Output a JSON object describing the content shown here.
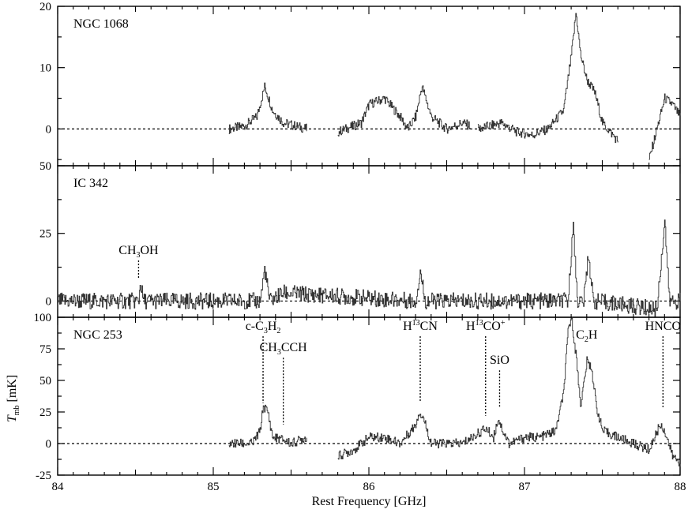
{
  "chart_data": {
    "type": "line",
    "xlabel": "Rest Frequency [GHz]",
    "ylabel": "T_mb [mK]",
    "ylabel_main": "T",
    "ylabel_sub": "mb",
    "ylabel_unit": " [mK]",
    "xlim": [
      84,
      88
    ],
    "x_ticks": [
      84,
      85,
      86,
      87,
      88
    ],
    "x_tick_labels": [
      "84",
      "85",
      "86",
      "87",
      "88"
    ],
    "panels": [
      {
        "name": "NGC 1068",
        "ylim": [
          -6,
          20
        ],
        "y_ticks": [
          0,
          10,
          20
        ],
        "y_tick_labels": [
          "0",
          "10",
          "20"
        ],
        "segments": [
          {
            "x_start": 85.1,
            "x_end": 85.6,
            "points": [
              [
                85.1,
                0
              ],
              [
                85.2,
                0.5
              ],
              [
                85.28,
                2
              ],
              [
                85.33,
                7
              ],
              [
                85.38,
                3
              ],
              [
                85.45,
                1
              ],
              [
                85.6,
                0
              ]
            ]
          },
          {
            "x_start": 85.8,
            "x_end": 86.65,
            "points": [
              [
                85.8,
                -0.5
              ],
              [
                85.95,
                1
              ],
              [
                86.0,
                4
              ],
              [
                86.1,
                5
              ],
              [
                86.2,
                2
              ],
              [
                86.25,
                0
              ],
              [
                86.3,
                2
              ],
              [
                86.34,
                7
              ],
              [
                86.4,
                2
              ],
              [
                86.5,
                0
              ],
              [
                86.6,
                1
              ],
              [
                86.65,
                0.5
              ]
            ]
          },
          {
            "x_start": 86.7,
            "x_end": 87.6,
            "points": [
              [
                86.7,
                0
              ],
              [
                86.85,
                1
              ],
              [
                86.95,
                -0.5
              ],
              [
                87.05,
                -1
              ],
              [
                87.15,
                0
              ],
              [
                87.25,
                3
              ],
              [
                87.3,
                12
              ],
              [
                87.33,
                19
              ],
              [
                87.36,
                12
              ],
              [
                87.4,
                8
              ],
              [
                87.45,
                6
              ],
              [
                87.5,
                1
              ],
              [
                87.6,
                -2
              ]
            ]
          },
          {
            "x_start": 87.8,
            "x_end": 88.0,
            "points": [
              [
                87.8,
                -5
              ],
              [
                87.85,
                0
              ],
              [
                87.9,
                5
              ],
              [
                87.95,
                4
              ],
              [
                88.0,
                2
              ]
            ]
          }
        ]
      },
      {
        "name": "IC 342",
        "ylim": [
          -6,
          50
        ],
        "y_ticks": [
          0,
          25,
          50
        ],
        "y_tick_labels": [
          "0",
          "25",
          "50"
        ],
        "segments": [
          {
            "x_start": 84.0,
            "x_end": 88.0,
            "points": [
              [
                84.0,
                0
              ],
              [
                84.52,
                0
              ],
              [
                84.53,
                7
              ],
              [
                84.55,
                0
              ],
              [
                85.3,
                0
              ],
              [
                85.33,
                12
              ],
              [
                85.36,
                0
              ],
              [
                85.45,
                3
              ],
              [
                86.3,
                0
              ],
              [
                86.33,
                11
              ],
              [
                86.36,
                0
              ],
              [
                87.28,
                0
              ],
              [
                87.31,
                29
              ],
              [
                87.34,
                0
              ],
              [
                87.38,
                0
              ],
              [
                87.41,
                18
              ],
              [
                87.44,
                0
              ],
              [
                87.85,
                -3
              ],
              [
                87.9,
                30
              ],
              [
                87.93,
                0
              ],
              [
                88.0,
                0
              ]
            ]
          }
        ]
      },
      {
        "name": "NGC 253",
        "ylim": [
          -25,
          100
        ],
        "y_ticks": [
          -25,
          0,
          25,
          50,
          75,
          100
        ],
        "y_tick_labels": [
          "-25",
          "0",
          "25",
          "50",
          "75",
          "100"
        ],
        "segments": [
          {
            "x_start": 85.1,
            "x_end": 85.6,
            "points": [
              [
                85.1,
                0
              ],
              [
                85.25,
                0
              ],
              [
                85.3,
                10
              ],
              [
                85.32,
                30
              ],
              [
                85.35,
                25
              ],
              [
                85.38,
                5
              ],
              [
                85.45,
                3
              ],
              [
                85.5,
                0
              ],
              [
                85.6,
                5
              ]
            ]
          },
          {
            "x_start": 85.8,
            "x_end": 88.0,
            "points": [
              [
                85.8,
                -10
              ],
              [
                85.9,
                -5
              ],
              [
                86.0,
                5
              ],
              [
                86.1,
                5
              ],
              [
                86.2,
                0
              ],
              [
                86.3,
                15
              ],
              [
                86.32,
                25
              ],
              [
                86.35,
                20
              ],
              [
                86.4,
                0
              ],
              [
                86.6,
                0
              ],
              [
                86.7,
                8
              ],
              [
                86.75,
                12
              ],
              [
                86.8,
                5
              ],
              [
                86.83,
                20
              ],
              [
                86.86,
                10
              ],
              [
                86.9,
                0
              ],
              [
                87.0,
                5
              ],
              [
                87.1,
                5
              ],
              [
                87.2,
                10
              ],
              [
                87.25,
                40
              ],
              [
                87.28,
                90
              ],
              [
                87.3,
                100
              ],
              [
                87.33,
                70
              ],
              [
                87.36,
                30
              ],
              [
                87.4,
                65
              ],
              [
                87.43,
                60
              ],
              [
                87.46,
                30
              ],
              [
                87.5,
                10
              ],
              [
                87.6,
                5
              ],
              [
                87.7,
                0
              ],
              [
                87.8,
                -5
              ],
              [
                87.87,
                15
              ],
              [
                87.9,
                10
              ],
              [
                87.95,
                -10
              ],
              [
                88.0,
                -15
              ]
            ]
          }
        ]
      }
    ],
    "annotations": [
      {
        "panel": 1,
        "x": 84.52,
        "y_top": 15,
        "y_bottom": 8,
        "label_main": "CH",
        "label_sub": "3",
        "label_rest": "OH"
      },
      {
        "panel": 2,
        "x": 85.32,
        "y_top": 85,
        "y_bottom": 32,
        "label_main": "c-C",
        "label_sub": "3",
        "label_rest": "H",
        "label_sub2": "2"
      },
      {
        "panel": 2,
        "x": 85.45,
        "y_top": 68,
        "y_bottom": 15,
        "label_main": "CH",
        "label_sub": "3",
        "label_rest": "CCH"
      },
      {
        "panel": 2,
        "x": 86.33,
        "y_top": 85,
        "y_bottom": 33,
        "label_main": "H",
        "label_sup": "13",
        "label_rest": "CN"
      },
      {
        "panel": 2,
        "x": 86.75,
        "y_top": 85,
        "y_bottom": 22,
        "label_main": "H",
        "label_sup": "13",
        "label_rest": "CO",
        "label_sup2": "+"
      },
      {
        "panel": 2,
        "x": 86.84,
        "y_top": 58,
        "y_bottom": 28,
        "label_main": "SiO"
      },
      {
        "panel": 2,
        "x": 87.4,
        "y_top": 0,
        "y_bottom": 0,
        "label_main": "C",
        "label_sub": "2",
        "label_rest": "H",
        "no_line": true
      },
      {
        "panel": 2,
        "x": 87.89,
        "y_top": 85,
        "y_bottom": 28,
        "label_main": "HNCO"
      }
    ],
    "baseline": 0,
    "grid": false,
    "legend": "none"
  }
}
